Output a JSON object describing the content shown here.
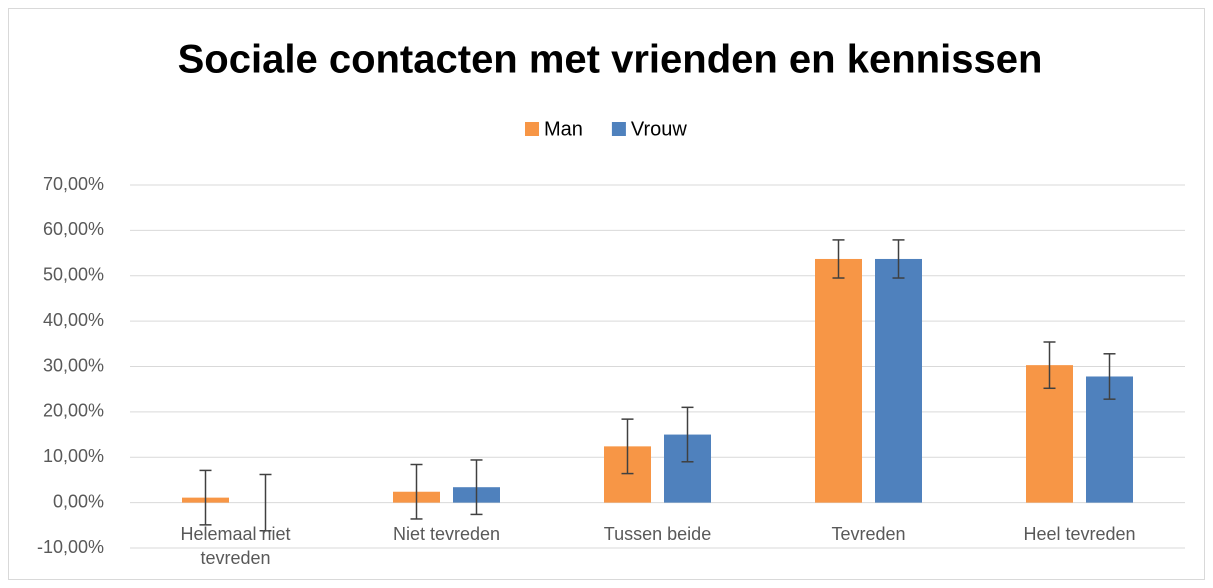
{
  "chart_data": {
    "type": "bar",
    "title": "Sociale contacten met vrienden en kennissen",
    "categories": [
      "Helemaal niet tevreden",
      "Niet tevreden",
      "Tussen beide",
      "Tevreden",
      "Heel tevreden"
    ],
    "series": [
      {
        "name": "Man",
        "color": "#f79646",
        "values": [
          1.1,
          2.4,
          12.4,
          53.7,
          30.3
        ],
        "errors": [
          6,
          6,
          6,
          4.2,
          5.1
        ]
      },
      {
        "name": "Vrouw",
        "color": "#4f81bd",
        "values": [
          0,
          3.4,
          15.0,
          53.7,
          27.8
        ],
        "errors": [
          6.2,
          6,
          6,
          4.2,
          5.0
        ]
      }
    ],
    "ylim": [
      -10,
      70
    ],
    "yticks": [
      {
        "value": -10,
        "label": "-10,00%"
      },
      {
        "value": 0,
        "label": "0,00%"
      },
      {
        "value": 10,
        "label": "10,00%"
      },
      {
        "value": 20,
        "label": "20,00%"
      },
      {
        "value": 30,
        "label": "30,00%"
      },
      {
        "value": 40,
        "label": "40,00%"
      },
      {
        "value": 50,
        "label": "50,00%"
      },
      {
        "value": 60,
        "label": "60,00%"
      },
      {
        "value": 70,
        "label": "70,00%"
      }
    ],
    "grid": true,
    "legend": "top"
  }
}
